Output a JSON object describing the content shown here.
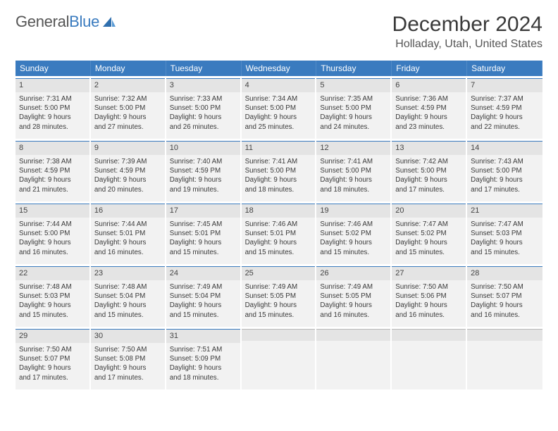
{
  "brand": {
    "name1": "General",
    "name2": "Blue"
  },
  "title": "December 2024",
  "location": "Holladay, Utah, United States",
  "colors": {
    "header_bar": "#3a7bbf",
    "day_bg": "#f2f2f2",
    "daynum_bg": "#e4e4e4",
    "daynum_border": "#3a7bbf",
    "text": "#3a3a3a",
    "brand_blue": "#3a7bbf",
    "brand_gray": "#555555"
  },
  "dow": [
    "Sunday",
    "Monday",
    "Tuesday",
    "Wednesday",
    "Thursday",
    "Friday",
    "Saturday"
  ],
  "weeks": [
    [
      {
        "n": "1",
        "sr": "Sunrise: 7:31 AM",
        "ss": "Sunset: 5:00 PM",
        "d1": "Daylight: 9 hours",
        "d2": "and 28 minutes."
      },
      {
        "n": "2",
        "sr": "Sunrise: 7:32 AM",
        "ss": "Sunset: 5:00 PM",
        "d1": "Daylight: 9 hours",
        "d2": "and 27 minutes."
      },
      {
        "n": "3",
        "sr": "Sunrise: 7:33 AM",
        "ss": "Sunset: 5:00 PM",
        "d1": "Daylight: 9 hours",
        "d2": "and 26 minutes."
      },
      {
        "n": "4",
        "sr": "Sunrise: 7:34 AM",
        "ss": "Sunset: 5:00 PM",
        "d1": "Daylight: 9 hours",
        "d2": "and 25 minutes."
      },
      {
        "n": "5",
        "sr": "Sunrise: 7:35 AM",
        "ss": "Sunset: 5:00 PM",
        "d1": "Daylight: 9 hours",
        "d2": "and 24 minutes."
      },
      {
        "n": "6",
        "sr": "Sunrise: 7:36 AM",
        "ss": "Sunset: 4:59 PM",
        "d1": "Daylight: 9 hours",
        "d2": "and 23 minutes."
      },
      {
        "n": "7",
        "sr": "Sunrise: 7:37 AM",
        "ss": "Sunset: 4:59 PM",
        "d1": "Daylight: 9 hours",
        "d2": "and 22 minutes."
      }
    ],
    [
      {
        "n": "8",
        "sr": "Sunrise: 7:38 AM",
        "ss": "Sunset: 4:59 PM",
        "d1": "Daylight: 9 hours",
        "d2": "and 21 minutes."
      },
      {
        "n": "9",
        "sr": "Sunrise: 7:39 AM",
        "ss": "Sunset: 4:59 PM",
        "d1": "Daylight: 9 hours",
        "d2": "and 20 minutes."
      },
      {
        "n": "10",
        "sr": "Sunrise: 7:40 AM",
        "ss": "Sunset: 4:59 PM",
        "d1": "Daylight: 9 hours",
        "d2": "and 19 minutes."
      },
      {
        "n": "11",
        "sr": "Sunrise: 7:41 AM",
        "ss": "Sunset: 5:00 PM",
        "d1": "Daylight: 9 hours",
        "d2": "and 18 minutes."
      },
      {
        "n": "12",
        "sr": "Sunrise: 7:41 AM",
        "ss": "Sunset: 5:00 PM",
        "d1": "Daylight: 9 hours",
        "d2": "and 18 minutes."
      },
      {
        "n": "13",
        "sr": "Sunrise: 7:42 AM",
        "ss": "Sunset: 5:00 PM",
        "d1": "Daylight: 9 hours",
        "d2": "and 17 minutes."
      },
      {
        "n": "14",
        "sr": "Sunrise: 7:43 AM",
        "ss": "Sunset: 5:00 PM",
        "d1": "Daylight: 9 hours",
        "d2": "and 17 minutes."
      }
    ],
    [
      {
        "n": "15",
        "sr": "Sunrise: 7:44 AM",
        "ss": "Sunset: 5:00 PM",
        "d1": "Daylight: 9 hours",
        "d2": "and 16 minutes."
      },
      {
        "n": "16",
        "sr": "Sunrise: 7:44 AM",
        "ss": "Sunset: 5:01 PM",
        "d1": "Daylight: 9 hours",
        "d2": "and 16 minutes."
      },
      {
        "n": "17",
        "sr": "Sunrise: 7:45 AM",
        "ss": "Sunset: 5:01 PM",
        "d1": "Daylight: 9 hours",
        "d2": "and 15 minutes."
      },
      {
        "n": "18",
        "sr": "Sunrise: 7:46 AM",
        "ss": "Sunset: 5:01 PM",
        "d1": "Daylight: 9 hours",
        "d2": "and 15 minutes."
      },
      {
        "n": "19",
        "sr": "Sunrise: 7:46 AM",
        "ss": "Sunset: 5:02 PM",
        "d1": "Daylight: 9 hours",
        "d2": "and 15 minutes."
      },
      {
        "n": "20",
        "sr": "Sunrise: 7:47 AM",
        "ss": "Sunset: 5:02 PM",
        "d1": "Daylight: 9 hours",
        "d2": "and 15 minutes."
      },
      {
        "n": "21",
        "sr": "Sunrise: 7:47 AM",
        "ss": "Sunset: 5:03 PM",
        "d1": "Daylight: 9 hours",
        "d2": "and 15 minutes."
      }
    ],
    [
      {
        "n": "22",
        "sr": "Sunrise: 7:48 AM",
        "ss": "Sunset: 5:03 PM",
        "d1": "Daylight: 9 hours",
        "d2": "and 15 minutes."
      },
      {
        "n": "23",
        "sr": "Sunrise: 7:48 AM",
        "ss": "Sunset: 5:04 PM",
        "d1": "Daylight: 9 hours",
        "d2": "and 15 minutes."
      },
      {
        "n": "24",
        "sr": "Sunrise: 7:49 AM",
        "ss": "Sunset: 5:04 PM",
        "d1": "Daylight: 9 hours",
        "d2": "and 15 minutes."
      },
      {
        "n": "25",
        "sr": "Sunrise: 7:49 AM",
        "ss": "Sunset: 5:05 PM",
        "d1": "Daylight: 9 hours",
        "d2": "and 15 minutes."
      },
      {
        "n": "26",
        "sr": "Sunrise: 7:49 AM",
        "ss": "Sunset: 5:05 PM",
        "d1": "Daylight: 9 hours",
        "d2": "and 16 minutes."
      },
      {
        "n": "27",
        "sr": "Sunrise: 7:50 AM",
        "ss": "Sunset: 5:06 PM",
        "d1": "Daylight: 9 hours",
        "d2": "and 16 minutes."
      },
      {
        "n": "28",
        "sr": "Sunrise: 7:50 AM",
        "ss": "Sunset: 5:07 PM",
        "d1": "Daylight: 9 hours",
        "d2": "and 16 minutes."
      }
    ],
    [
      {
        "n": "29",
        "sr": "Sunrise: 7:50 AM",
        "ss": "Sunset: 5:07 PM",
        "d1": "Daylight: 9 hours",
        "d2": "and 17 minutes."
      },
      {
        "n": "30",
        "sr": "Sunrise: 7:50 AM",
        "ss": "Sunset: 5:08 PM",
        "d1": "Daylight: 9 hours",
        "d2": "and 17 minutes."
      },
      {
        "n": "31",
        "sr": "Sunrise: 7:51 AM",
        "ss": "Sunset: 5:09 PM",
        "d1": "Daylight: 9 hours",
        "d2": "and 18 minutes."
      },
      {
        "empty": true
      },
      {
        "empty": true
      },
      {
        "empty": true
      },
      {
        "empty": true
      }
    ]
  ]
}
